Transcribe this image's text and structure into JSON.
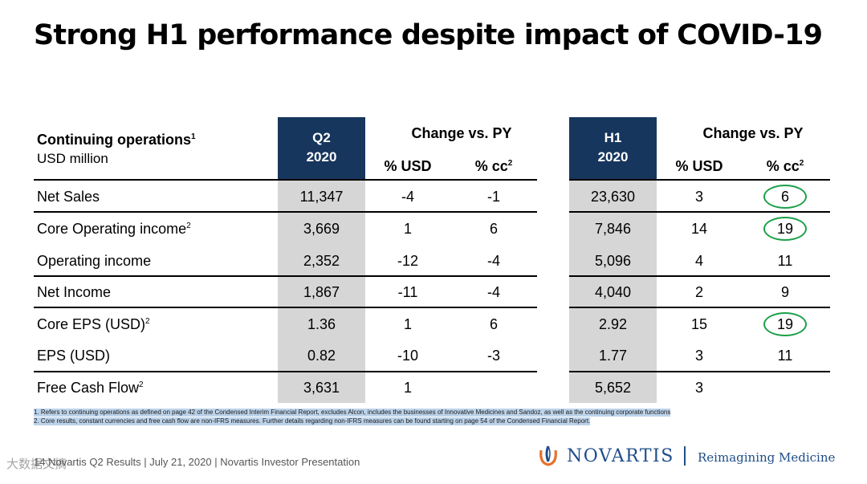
{
  "title": "Strong H1 performance despite impact of COVID-19",
  "table": {
    "header_label": "Continuing operations",
    "header_label_sup": "1",
    "header_unit": "USD million",
    "q2_header": [
      "Q2",
      "2020"
    ],
    "h1_header": [
      "H1",
      "2020"
    ],
    "change_header": "Change vs. PY",
    "usd_col": "% USD",
    "cc_col": "% cc",
    "cc_sup": "2",
    "rows": [
      {
        "label": "Net Sales",
        "sup": "",
        "q2": "11,347",
        "q2_usd": "-4",
        "q2_cc": "-1",
        "h1": "23,630",
        "h1_usd": "3",
        "h1_cc": "6",
        "highlight": true
      },
      {
        "label": "Core Operating income",
        "sup": "2",
        "q2": "3,669",
        "q2_usd": "1",
        "q2_cc": "6",
        "h1": "7,846",
        "h1_usd": "14",
        "h1_cc": "19",
        "highlight": true
      },
      {
        "label": "Operating income",
        "sup": "",
        "q2": "2,352",
        "q2_usd": "-12",
        "q2_cc": "-4",
        "h1": "5,096",
        "h1_usd": "4",
        "h1_cc": "11",
        "highlight": false
      },
      {
        "label": "Net Income",
        "sup": "",
        "q2": "1,867",
        "q2_usd": "-11",
        "q2_cc": "-4",
        "h1": "4,040",
        "h1_usd": "2",
        "h1_cc": "9",
        "highlight": false
      },
      {
        "label": "Core EPS (USD)",
        "sup": "2",
        "q2": "1.36",
        "q2_usd": "1",
        "q2_cc": "6",
        "h1": "2.92",
        "h1_usd": "15",
        "h1_cc": "19",
        "highlight": true
      },
      {
        "label": "EPS (USD)",
        "sup": "",
        "q2": "0.82",
        "q2_usd": "-10",
        "q2_cc": "-3",
        "h1": "1.77",
        "h1_usd": "3",
        "h1_cc": "11",
        "highlight": false
      },
      {
        "label": "Free Cash Flow",
        "sup": "2",
        "q2": "3,631",
        "q2_usd": "1",
        "q2_cc": "",
        "h1": "5,652",
        "h1_usd": "3",
        "h1_cc": "",
        "highlight": false
      }
    ]
  },
  "footnotes": [
    "1. Refers to continuing operations as defined on page 42 of the Condensed Interim Financial Report, excludes Alcon, includes the businesses of Innovative Medicines and Sandoz, as well as the continuing corporate functions",
    "2. Core results, constant currencies and free cash flow are non-IFRS measures. Further details regarding non-IFRS measures can be found starting on page 54 of the Condensed Financial Report."
  ],
  "footer": "14   Novartis Q2 Results | July 21, 2020 | Novartis Investor Presentation",
  "brand": {
    "name": "NOVARTIS",
    "tagline": "Reimagining Medicine",
    "color": "#1f4e89"
  },
  "watermark": "大数据文摘",
  "colors": {
    "navy": "#17365d",
    "grey": "#d6d6d6",
    "highlight": "#1aa048"
  }
}
